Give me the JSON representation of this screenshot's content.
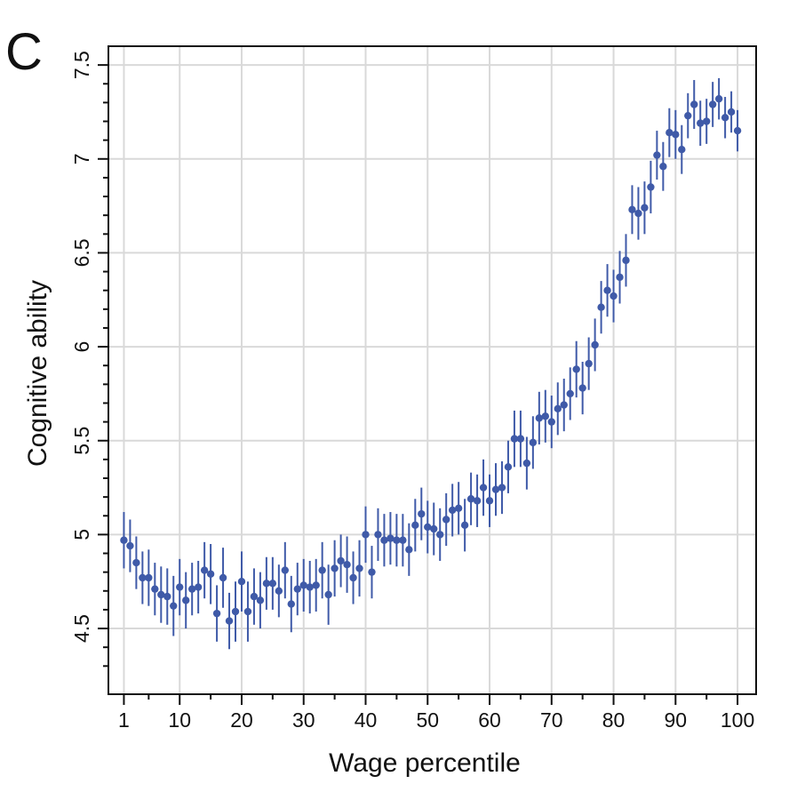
{
  "panel_label": "C",
  "colors": {
    "marker": "#3f5aa8",
    "grid": "#d9d9d9",
    "axis": "#111111"
  },
  "chart_data": {
    "type": "scatter",
    "xlabel": "Wage percentile",
    "ylabel": "Cognitive ability",
    "xlim": [
      -1.5,
      103
    ],
    "ylim": [
      4.15,
      7.6
    ],
    "xticks": [
      1,
      10,
      20,
      30,
      40,
      50,
      60,
      70,
      80,
      90,
      100
    ],
    "xtick_labels": [
      "1",
      "10",
      "20",
      "30",
      "40",
      "50",
      "60",
      "70",
      "80",
      "90",
      "100"
    ],
    "yticks": [
      4.5,
      5,
      5.5,
      6,
      6.5,
      7,
      7.5
    ],
    "ytick_labels": [
      "4.5",
      "5",
      "5.5",
      "6",
      "6.5",
      "7",
      "7.5"
    ],
    "grid": true,
    "error_bars": "vertical, ±approx 0.14",
    "series": [
      {
        "x": [
          1,
          2,
          3,
          4,
          5,
          6,
          7,
          8,
          9,
          10,
          11,
          12,
          13,
          14,
          15,
          16,
          17,
          18,
          19,
          20,
          21,
          22,
          23,
          24,
          25,
          26,
          27,
          28,
          29,
          30,
          31,
          32,
          33,
          34,
          35,
          36,
          37,
          38,
          39,
          40,
          41,
          42,
          43,
          44,
          45,
          46,
          47,
          48,
          49,
          50,
          51,
          52,
          53,
          54,
          55,
          56,
          57,
          58,
          59,
          60,
          61,
          62,
          63,
          64,
          65,
          66,
          67,
          68,
          69,
          70,
          71,
          72,
          73,
          74,
          75,
          76,
          77,
          78,
          79,
          80,
          81,
          82,
          83,
          84,
          85,
          86,
          87,
          88,
          89,
          90,
          91,
          92,
          93,
          94,
          95,
          96,
          97,
          98,
          99,
          100
        ],
        "y": [
          4.97,
          4.94,
          4.85,
          4.77,
          4.77,
          4.71,
          4.68,
          4.67,
          4.62,
          4.72,
          4.65,
          4.71,
          4.72,
          4.81,
          4.79,
          4.58,
          4.77,
          4.54,
          4.59,
          4.75,
          4.59,
          4.67,
          4.65,
          4.74,
          4.74,
          4.7,
          4.81,
          4.63,
          4.71,
          4.73,
          4.72,
          4.73,
          4.81,
          4.68,
          4.82,
          4.86,
          4.84,
          4.77,
          4.82,
          5.0,
          4.8,
          5.0,
          4.97,
          4.98,
          4.97,
          4.97,
          4.92,
          5.05,
          5.11,
          5.04,
          5.03,
          5.0,
          5.08,
          5.13,
          5.14,
          5.05,
          5.19,
          5.18,
          5.25,
          5.18,
          5.24,
          5.25,
          5.36,
          5.51,
          5.51,
          5.38,
          5.49,
          5.62,
          5.63,
          5.6,
          5.67,
          5.69,
          5.75,
          5.88,
          5.78,
          5.91,
          6.01,
          6.21,
          6.3,
          6.27,
          6.37,
          6.46,
          6.73,
          6.71,
          6.74,
          6.85,
          7.02,
          6.96,
          7.14,
          7.13,
          7.05,
          7.23,
          7.29,
          7.19,
          7.2,
          7.29,
          7.32,
          7.22,
          7.25,
          7.15
        ],
        "err": [
          0.15,
          0.14,
          0.14,
          0.14,
          0.15,
          0.14,
          0.15,
          0.15,
          0.16,
          0.15,
          0.15,
          0.14,
          0.14,
          0.15,
          0.16,
          0.15,
          0.16,
          0.15,
          0.16,
          0.16,
          0.16,
          0.15,
          0.15,
          0.14,
          0.14,
          0.14,
          0.15,
          0.15,
          0.14,
          0.14,
          0.14,
          0.14,
          0.15,
          0.16,
          0.15,
          0.14,
          0.15,
          0.14,
          0.15,
          0.15,
          0.14,
          0.14,
          0.14,
          0.14,
          0.14,
          0.14,
          0.14,
          0.14,
          0.14,
          0.14,
          0.14,
          0.14,
          0.14,
          0.14,
          0.14,
          0.14,
          0.14,
          0.14,
          0.15,
          0.14,
          0.14,
          0.14,
          0.14,
          0.15,
          0.15,
          0.14,
          0.14,
          0.14,
          0.14,
          0.14,
          0.14,
          0.14,
          0.14,
          0.15,
          0.14,
          0.14,
          0.14,
          0.14,
          0.14,
          0.14,
          0.14,
          0.14,
          0.13,
          0.14,
          0.14,
          0.14,
          0.13,
          0.13,
          0.13,
          0.13,
          0.13,
          0.12,
          0.13,
          0.12,
          0.12,
          0.12,
          0.11,
          0.11,
          0.11,
          0.11
        ]
      }
    ]
  }
}
